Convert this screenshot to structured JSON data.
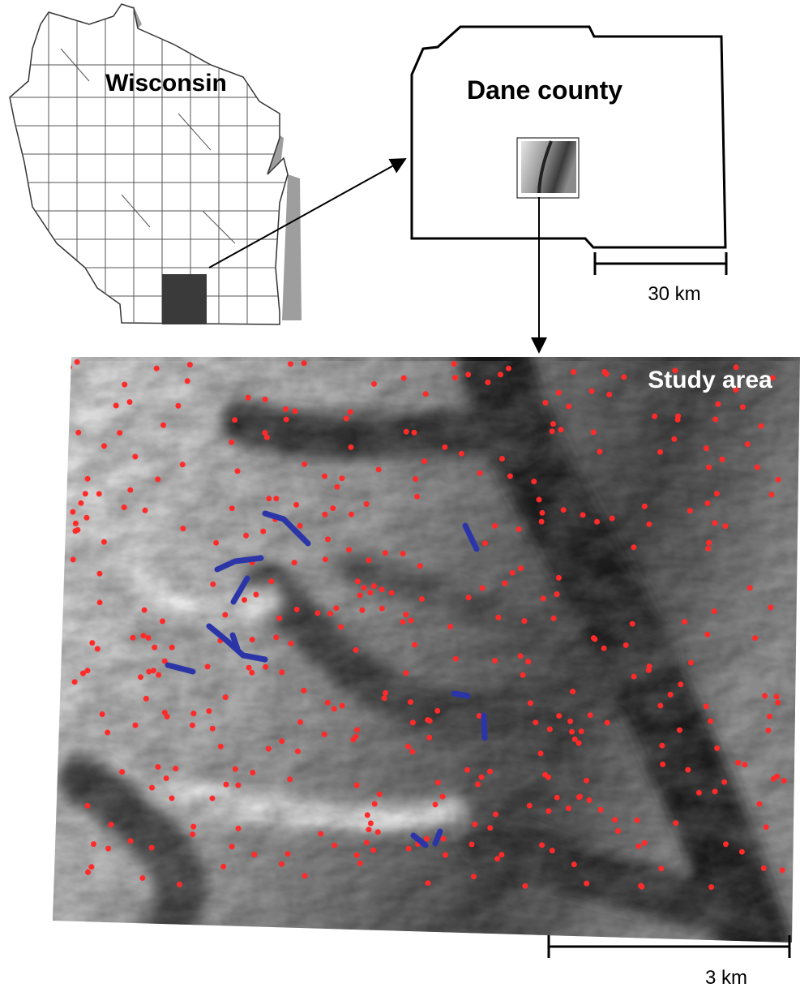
{
  "labels": {
    "state": "Wisconsin",
    "county": "Dane county",
    "study_area": "Study area"
  },
  "scale_bars": [
    {
      "label": "30 km"
    },
    {
      "label": "3 km"
    }
  ]
}
